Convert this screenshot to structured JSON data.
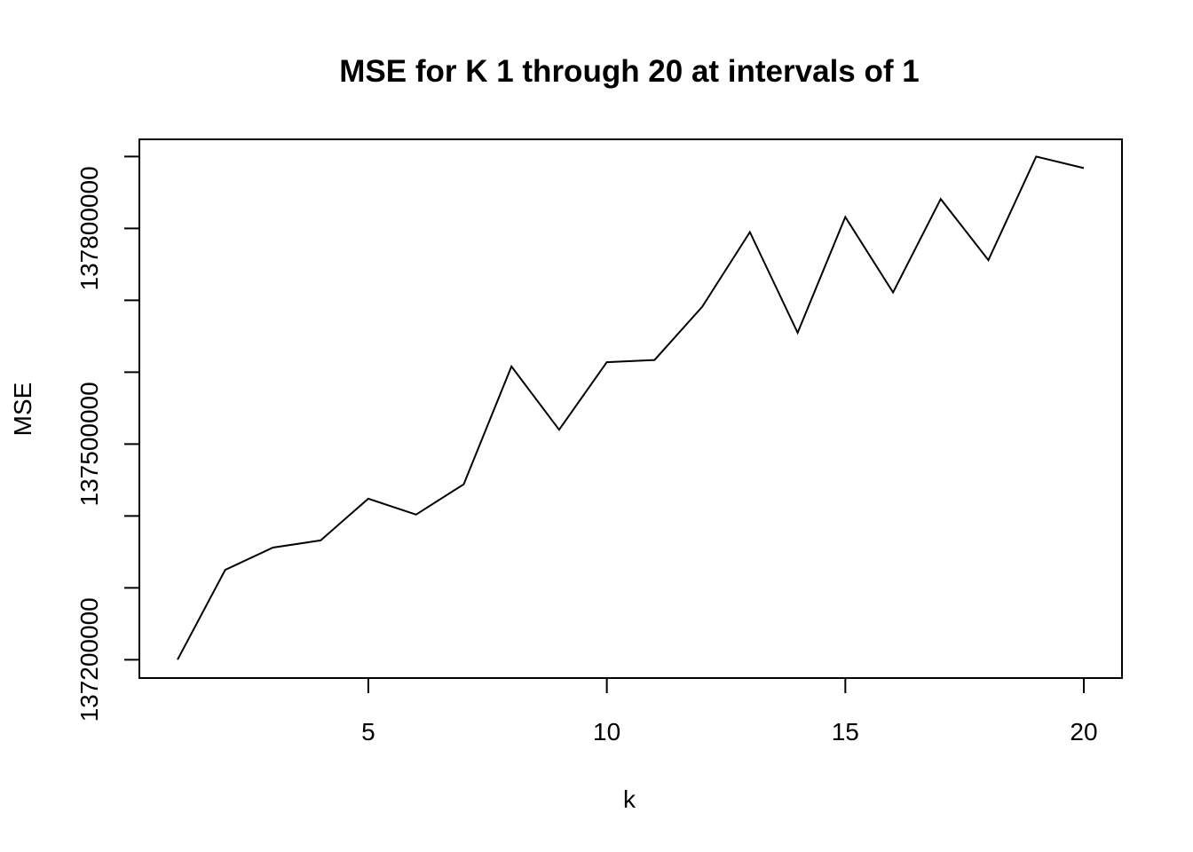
{
  "chart_data": {
    "type": "line",
    "title": "MSE for K 1 through 20 at intervals of 1",
    "xlabel": "k",
    "ylabel": "MSE",
    "x": [
      1,
      2,
      3,
      4,
      5,
      6,
      7,
      8,
      9,
      10,
      11,
      12,
      13,
      14,
      15,
      16,
      17,
      18,
      19,
      20
    ],
    "series": [
      {
        "values": [
          137200000,
          137325000,
          137356000,
          137366000,
          137424000,
          137402000,
          137444000,
          137608000,
          137520000,
          137614000,
          137617000,
          137691000,
          137795000,
          137655000,
          137816000,
          137711000,
          137841000,
          137756000,
          137900000,
          137884000
        ]
      }
    ],
    "xlim": [
      0.2,
      20.8
    ],
    "ylim": [
      137174500,
      137924000
    ],
    "x_ticks": [
      5,
      10,
      15,
      20
    ],
    "x_tick_labels": [
      "5",
      "10",
      "15",
      "20"
    ],
    "y_ticks": [
      137200000,
      137300000,
      137400000,
      137500000,
      137600000,
      137700000,
      137800000,
      137900000
    ],
    "y_tick_labels": [
      "137200000",
      "",
      "",
      "137500000",
      "",
      "",
      "137800000",
      ""
    ],
    "grid": false,
    "line_color": "#000000"
  }
}
